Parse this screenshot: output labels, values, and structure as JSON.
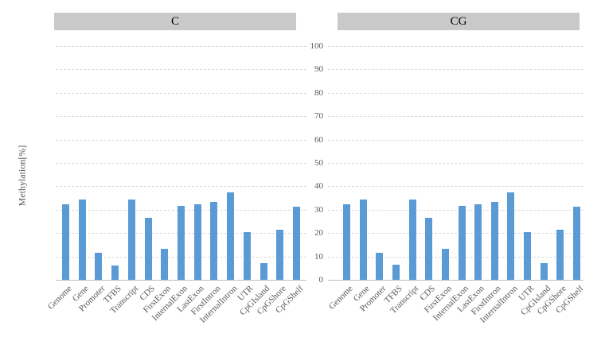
{
  "chart_data": {
    "type": "bar",
    "title": "",
    "ylabel": "Methylation[%]",
    "xlabel": "",
    "ylim": [
      0,
      100
    ],
    "yticks": [
      0,
      10,
      20,
      30,
      40,
      50,
      60,
      70,
      80,
      90,
      100
    ],
    "grid": "horizontal-dashed",
    "legend_position": "none",
    "categories": [
      "Genome",
      "Gene",
      "Promoter",
      "TFBS",
      "Transcript",
      "CDS",
      "FirstExon",
      "InternalExon",
      "LastExon",
      "FirstIntron",
      "InternalIntron",
      "UTR",
      "CpGIsland",
      "CpGShore",
      "CpGShelf"
    ],
    "panels": [
      {
        "title": "C",
        "values": [
          32.4,
          34.4,
          11.5,
          6.2,
          34.4,
          26.4,
          13.2,
          31.8,
          32.3,
          33.4,
          37.4,
          20.3,
          7.0,
          21.3,
          31.3
        ]
      },
      {
        "title": "CG",
        "values": [
          32.4,
          34.5,
          11.6,
          6.3,
          34.5,
          26.4,
          13.3,
          31.8,
          32.4,
          33.4,
          37.4,
          20.4,
          7.1,
          21.4,
          31.4
        ]
      }
    ],
    "colors": {
      "bar": "#5B9BD5",
      "panel_header_bg": "#C9C9C9",
      "panel_header_text": "#000000",
      "grid": "#D9D9D9",
      "axis_line": "#BFBFBF",
      "tick_text": "#595959",
      "category_text": "#595959",
      "background": "#FFFFFF"
    }
  }
}
